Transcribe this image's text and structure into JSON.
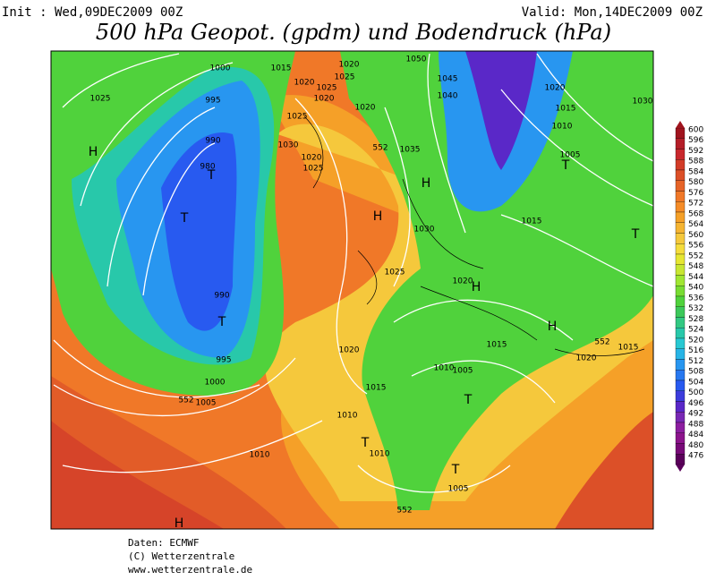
{
  "header": {
    "init": "Init : Wed,09DEC2009 00Z",
    "valid": "Valid: Mon,14DEC2009 00Z",
    "title": "500 hPa Geopot. (gpdm) und Bodendruck (hPa)"
  },
  "footer": [
    "Daten: ECMWF",
    "(C) Wetterzentrale",
    "www.wetterzentrale.de"
  ],
  "colorbar": {
    "levels": [
      600,
      596,
      592,
      588,
      584,
      580,
      576,
      572,
      568,
      564,
      560,
      556,
      552,
      548,
      544,
      540,
      536,
      532,
      528,
      524,
      520,
      516,
      512,
      508,
      504,
      500,
      496,
      492,
      488,
      484,
      480,
      476
    ],
    "colors": [
      "#a0141e",
      "#b41e28",
      "#c8282d",
      "#d23c28",
      "#dc5028",
      "#e66428",
      "#f07828",
      "#f58c28",
      "#f5a028",
      "#f5b432",
      "#f5c83c",
      "#f5dc3c",
      "#e6e632",
      "#c8e632",
      "#a0e632",
      "#78dc32",
      "#50d23c",
      "#3cc85a",
      "#32c882",
      "#28c8aa",
      "#28c8d2",
      "#28b4e6",
      "#2896f0",
      "#2878f0",
      "#285af0",
      "#3c3cdc",
      "#5a28c8",
      "#7828b4",
      "#8c1ea0",
      "#8c148c",
      "#780a78",
      "#5a005a"
    ]
  },
  "map_labels": [
    "1025",
    "H",
    "1000",
    "995",
    "990",
    "980",
    "T",
    "T",
    "990",
    "T",
    "995",
    "1000",
    "1005",
    "1015",
    "1020",
    "1025",
    "1020",
    "1020",
    "1025",
    "1020",
    "1025",
    "1030",
    "1020",
    "1025",
    "552",
    "1035",
    "H",
    "H",
    "1030",
    "1025",
    "1020",
    "H",
    "1050",
    "1045",
    "1040",
    "1020",
    "1015",
    "1010",
    "1005",
    "T",
    "1015",
    "T",
    "1030",
    "H",
    "1015",
    "1020",
    "1015",
    "552",
    "1020",
    "1015",
    "1010",
    "1005",
    "T",
    "1010",
    "T",
    "1010",
    "1010",
    "T",
    "1005",
    "552",
    "552",
    "H"
  ]
}
